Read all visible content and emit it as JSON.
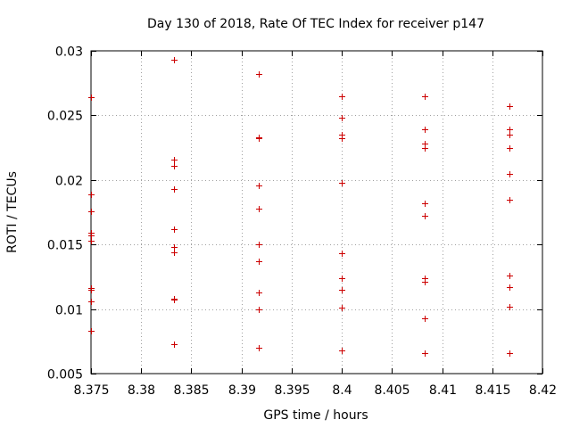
{
  "chart_data": {
    "type": "scatter",
    "title": "Day 130 of 2018, Rate Of TEC Index for receiver p147",
    "xlabel": "GPS time / hours",
    "ylabel": "ROTI / TECUs",
    "xlim": [
      8.375,
      8.42
    ],
    "ylim": [
      0.005,
      0.03
    ],
    "xticks": [
      8.375,
      8.38,
      8.385,
      8.39,
      8.395,
      8.4,
      8.405,
      8.41,
      8.415,
      8.42
    ],
    "xtick_labels": [
      "8.375",
      "8.38",
      "8.385",
      "8.39",
      "8.395",
      "8.4",
      "8.405",
      "8.41",
      "8.415",
      "8.42"
    ],
    "yticks": [
      0.005,
      0.01,
      0.015,
      0.02,
      0.025,
      0.03
    ],
    "ytick_labels": [
      "0.005",
      "0.01",
      "0.015",
      "0.02",
      "0.025",
      "0.03"
    ],
    "grid": true,
    "marker": "+",
    "color": "#cc0000",
    "series": [
      {
        "name": "p147",
        "points": [
          [
            8.375,
            0.0264
          ],
          [
            8.375,
            0.0189
          ],
          [
            8.375,
            0.0176
          ],
          [
            8.375,
            0.0159
          ],
          [
            8.375,
            0.0157
          ],
          [
            8.375,
            0.0153
          ],
          [
            8.375,
            0.0116
          ],
          [
            8.375,
            0.0115
          ],
          [
            8.375,
            0.0106
          ],
          [
            8.375,
            0.0083
          ],
          [
            8.3833,
            0.0293
          ],
          [
            8.3833,
            0.0216
          ],
          [
            8.3833,
            0.0211
          ],
          [
            8.3833,
            0.0193
          ],
          [
            8.3833,
            0.0162
          ],
          [
            8.3833,
            0.0148
          ],
          [
            8.3833,
            0.0144
          ],
          [
            8.3833,
            0.0108
          ],
          [
            8.3833,
            0.0107
          ],
          [
            8.3833,
            0.0073
          ],
          [
            8.3917,
            0.0282
          ],
          [
            8.3917,
            0.0233
          ],
          [
            8.3917,
            0.0232
          ],
          [
            8.3917,
            0.0196
          ],
          [
            8.3917,
            0.0178
          ],
          [
            8.3917,
            0.015
          ],
          [
            8.3917,
            0.0137
          ],
          [
            8.3917,
            0.0113
          ],
          [
            8.3917,
            0.01
          ],
          [
            8.3917,
            0.007
          ],
          [
            8.4,
            0.0265
          ],
          [
            8.4,
            0.0248
          ],
          [
            8.4,
            0.0235
          ],
          [
            8.4,
            0.0232
          ],
          [
            8.4,
            0.0198
          ],
          [
            8.4,
            0.0143
          ],
          [
            8.4,
            0.0124
          ],
          [
            8.4,
            0.0115
          ],
          [
            8.4,
            0.0101
          ],
          [
            8.4,
            0.0068
          ],
          [
            8.4083,
            0.0265
          ],
          [
            8.4083,
            0.0239
          ],
          [
            8.4083,
            0.0228
          ],
          [
            8.4083,
            0.0225
          ],
          [
            8.4083,
            0.0182
          ],
          [
            8.4083,
            0.0172
          ],
          [
            8.4083,
            0.0124
          ],
          [
            8.4083,
            0.0121
          ],
          [
            8.4083,
            0.0093
          ],
          [
            8.4083,
            0.0066
          ],
          [
            8.4167,
            0.0257
          ],
          [
            8.4167,
            0.0239
          ],
          [
            8.4167,
            0.0235
          ],
          [
            8.4167,
            0.0225
          ],
          [
            8.4167,
            0.0205
          ],
          [
            8.4167,
            0.0185
          ],
          [
            8.4167,
            0.0126
          ],
          [
            8.4167,
            0.0117
          ],
          [
            8.4167,
            0.0102
          ],
          [
            8.4167,
            0.0066
          ]
        ]
      }
    ]
  }
}
